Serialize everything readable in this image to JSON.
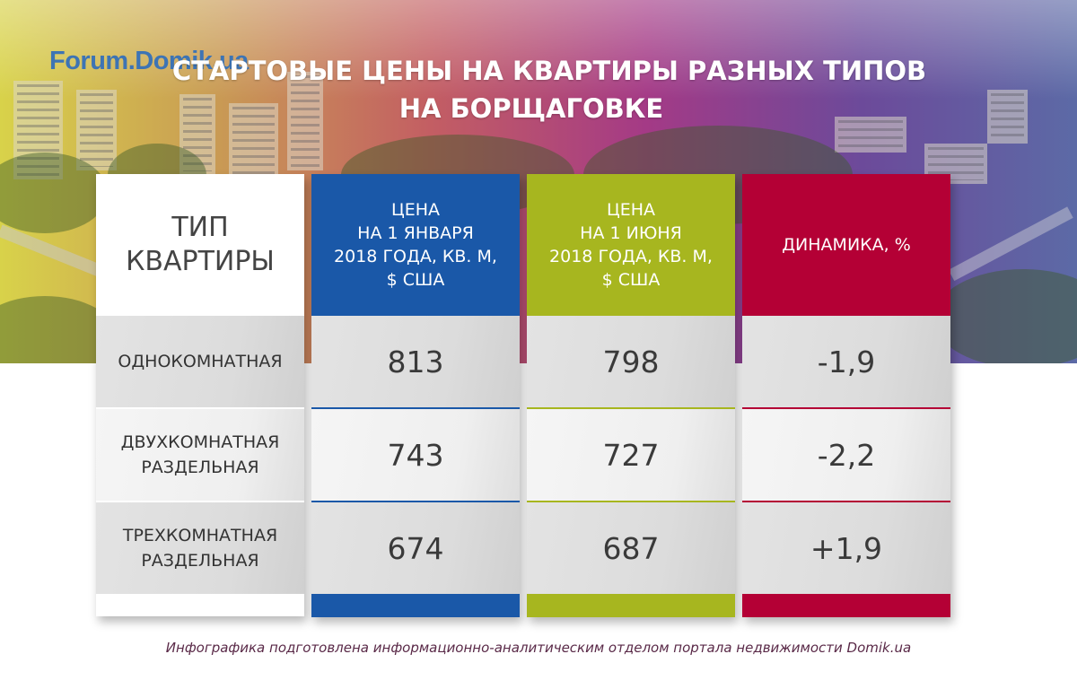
{
  "header": {
    "logo": "Forum.Domik.ua",
    "title_line1": "СТАРТОВЫЕ ЦЕНЫ НА КВАРТИРЫ РАЗНЫХ ТИПОВ",
    "title_line2": "НА БОРЩАГОВКЕ"
  },
  "table": {
    "headers": {
      "type": "ТИП\nКВАРТИРЫ",
      "jan": "ЦЕНА\nНА 1 ЯНВАРЯ\n2018 ГОДА, КВ. М,\n$ США",
      "jun": "ЦЕНА\nНА 1 ИЮНЯ\n2018 ГОДА, КВ. М,\n$ США",
      "dyn": "ДИНАМИКА, %"
    },
    "rows": [
      {
        "type": "ОДНОКОМНАТНАЯ",
        "jan": "813",
        "jun": "798",
        "dyn": "-1,9"
      },
      {
        "type": "ДВУХКОМНАТНАЯ\nРАЗДЕЛЬНАЯ",
        "jan": "743",
        "jun": "727",
        "dyn": "-2,2"
      },
      {
        "type": "ТРЕХКОМНАТНАЯ\nРАЗДЕЛЬНАЯ",
        "jan": "674",
        "jun": "687",
        "dyn": "+1,9"
      }
    ]
  },
  "colors": {
    "jan": "#1a58a8",
    "jun": "#a7b61f",
    "dyn": "#b40035"
  },
  "footer": "Инфографика подготовлена информационно-аналитическим отделом портала недвижимости Domik.ua"
}
